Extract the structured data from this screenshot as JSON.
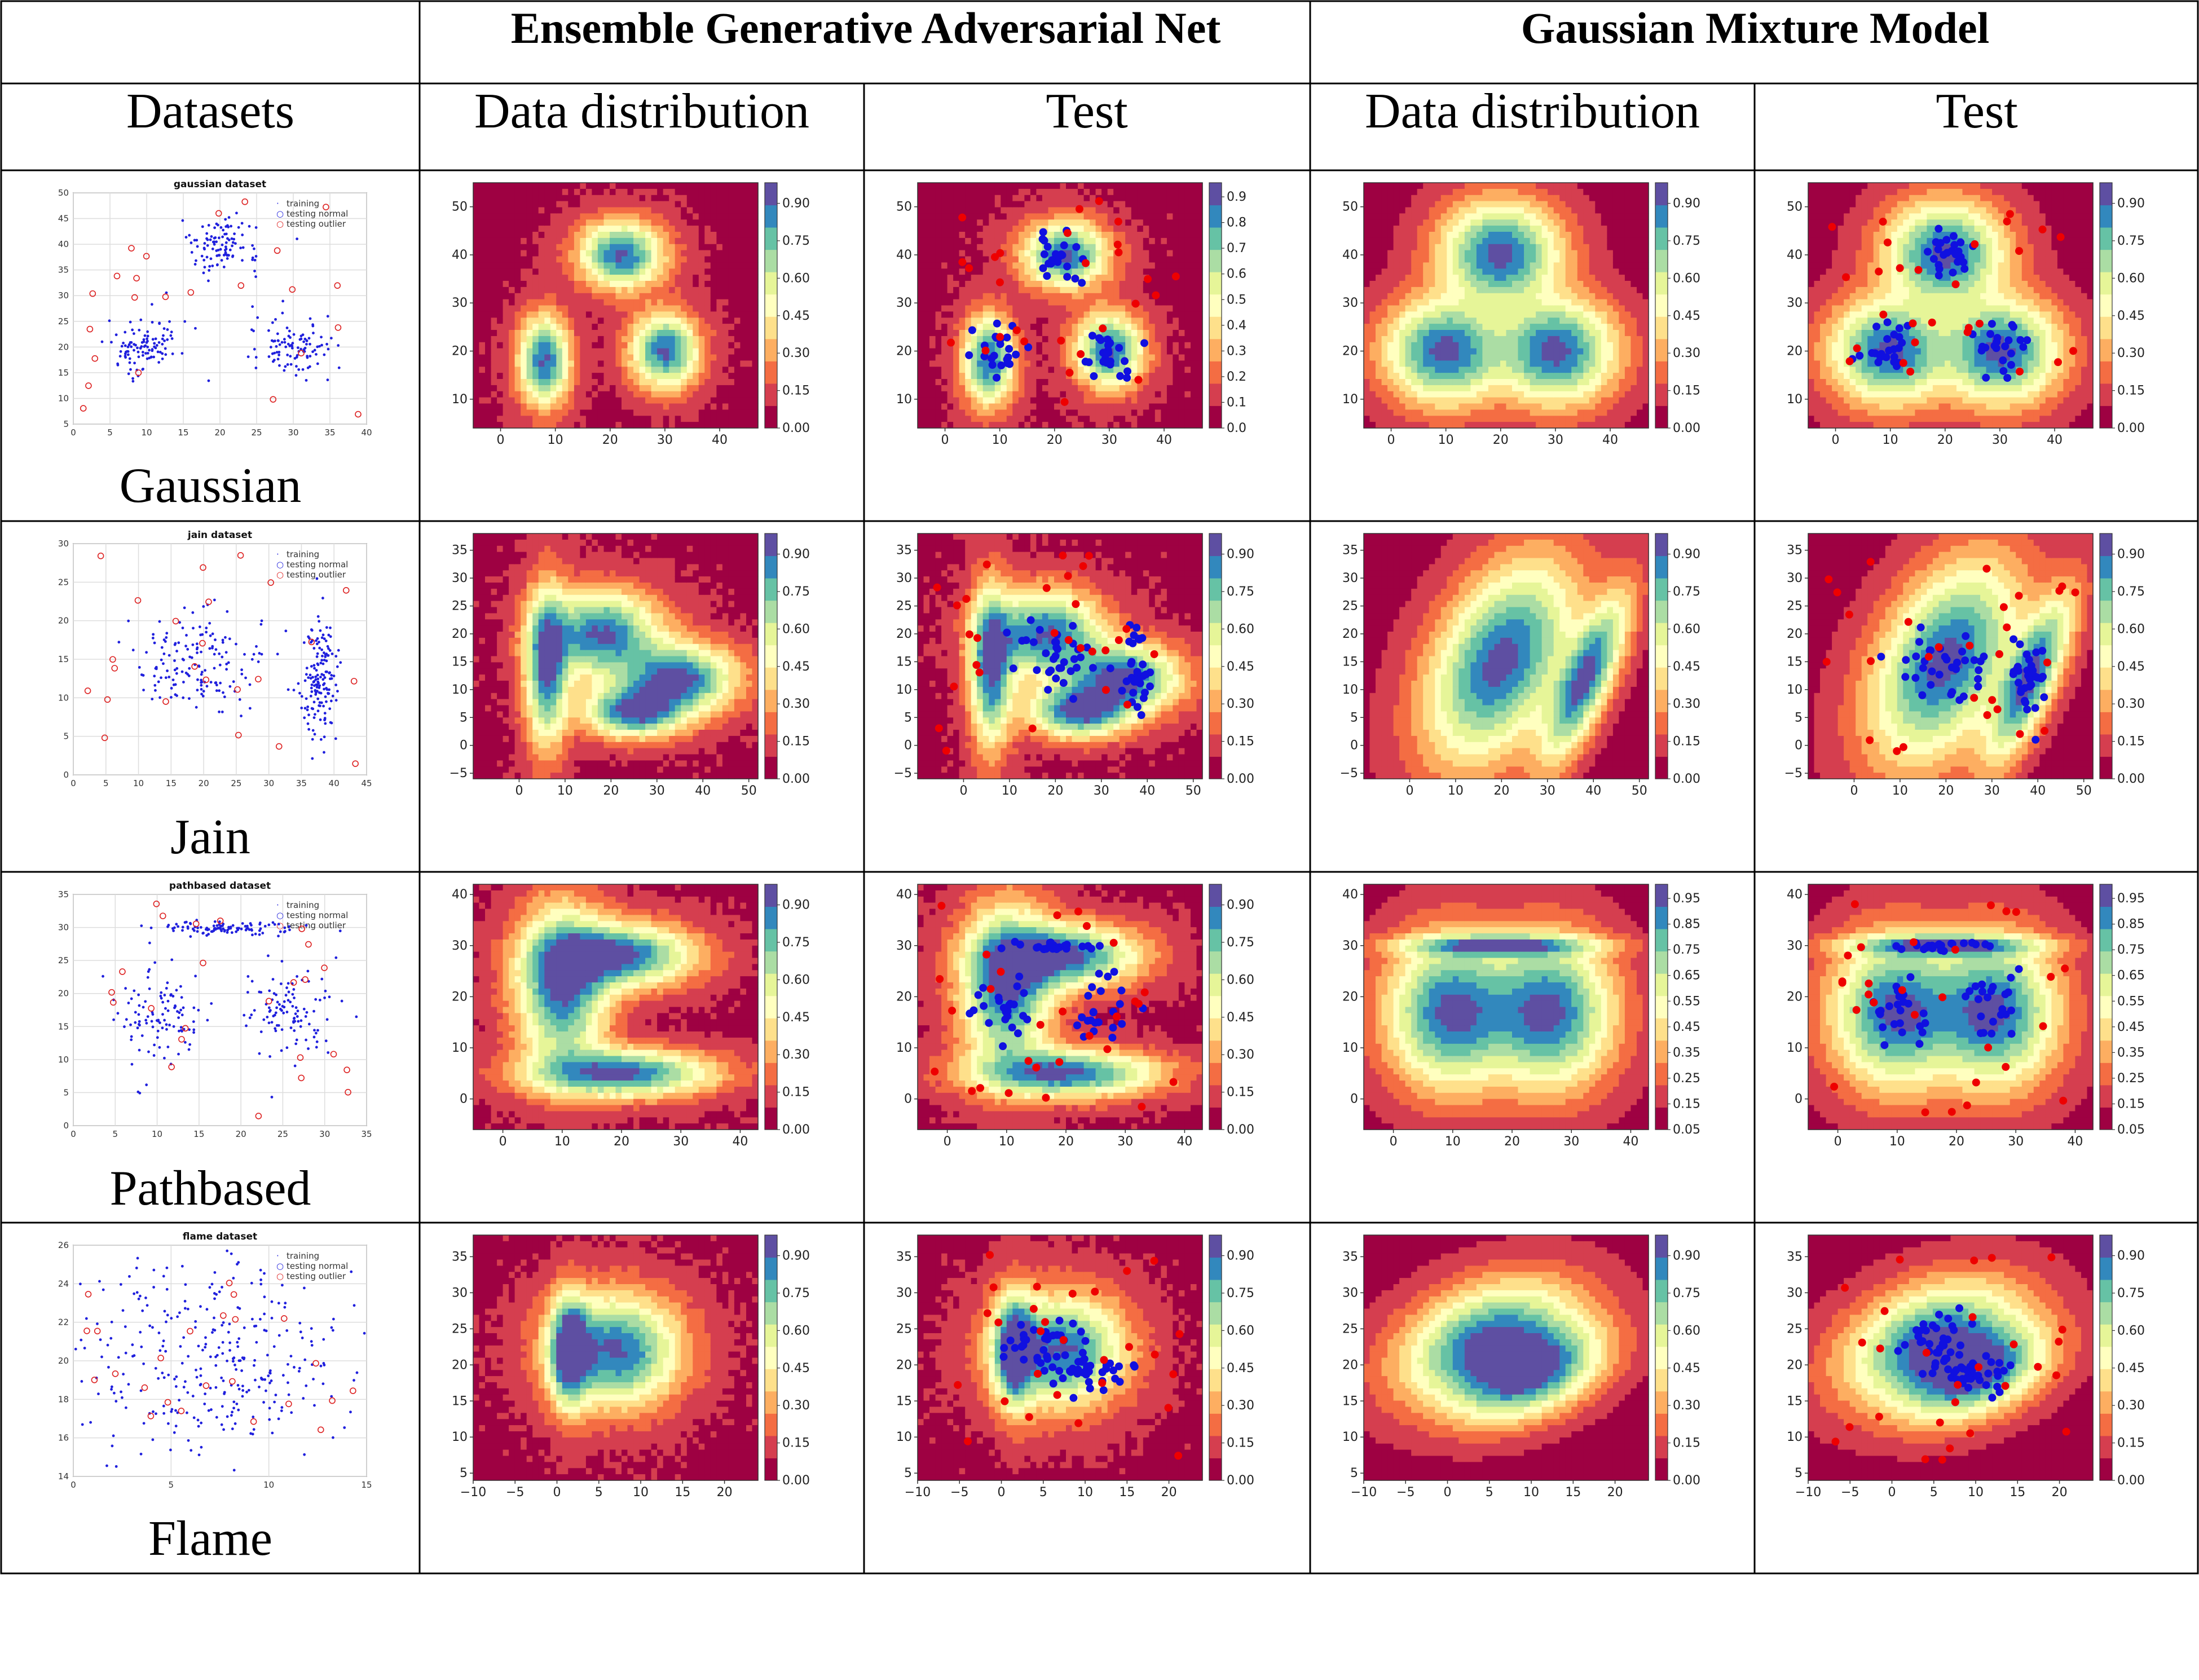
{
  "header": {
    "group_egan": "Ensemble Generative Adversarial  Net",
    "group_gmm": "Gaussian Mixture Model",
    "col_datasets": "Datasets",
    "col_egan_distribution": "Data distribution",
    "col_egan_test": "Test",
    "col_gmm_distribution": "Data distribution",
    "col_gmm_test": "Test"
  },
  "scatter_legend": [
    "training",
    "testing normal",
    "testing outlier"
  ],
  "colorbar_palette": [
    "#9e0142",
    "#d53e4f",
    "#f46d43",
    "#fdae61",
    "#fee08b",
    "#ffffbf",
    "#e6f598",
    "#abdda4",
    "#66c2a5",
    "#3288bd",
    "#5e4fa2"
  ],
  "rows": [
    {
      "name": "Gaussian",
      "scatter": {
        "title": "gaussian dataset",
        "xticks": [
          "0",
          "5",
          "10",
          "15",
          "20",
          "25",
          "30",
          "35",
          "40"
        ],
        "yticks": [
          "5",
          "10",
          "15",
          "20",
          "25",
          "30",
          "35",
          "40",
          "45",
          "50"
        ],
        "xrange": [
          0,
          40
        ],
        "yrange": [
          5,
          50
        ]
      },
      "contour": {
        "xrange": [
          -5,
          47
        ],
        "yrange": [
          4,
          55
        ],
        "xticks": [
          "0",
          "10",
          "20",
          "30",
          "40"
        ],
        "yticks": [
          "10",
          "20",
          "30",
          "40",
          "50"
        ]
      },
      "colorbars": {
        "egan_dist": [
          "0.00",
          "0.15",
          "0.30",
          "0.45",
          "0.60",
          "0.75",
          "0.90"
        ],
        "egan_test": [
          "0.0",
          "0.1",
          "0.2",
          "0.3",
          "0.4",
          "0.5",
          "0.6",
          "0.7",
          "0.8",
          "0.9"
        ],
        "gmm_dist": [
          "0.00",
          "0.15",
          "0.30",
          "0.45",
          "0.60",
          "0.75",
          "0.90"
        ],
        "gmm_test": [
          "0.00",
          "0.15",
          "0.30",
          "0.45",
          "0.60",
          "0.75",
          "0.90"
        ]
      }
    },
    {
      "name": "Jain",
      "scatter": {
        "title": "jain dataset",
        "xticks": [
          "0",
          "5",
          "10",
          "15",
          "20",
          "25",
          "30",
          "35",
          "40",
          "45"
        ],
        "yticks": [
          "0",
          "5",
          "10",
          "15",
          "20",
          "25",
          "30"
        ],
        "xrange": [
          0,
          45
        ],
        "yrange": [
          0,
          30
        ]
      },
      "contour": {
        "xrange": [
          -10,
          52
        ],
        "yrange": [
          -6,
          38
        ],
        "xticks": [
          "0",
          "10",
          "20",
          "30",
          "40",
          "50"
        ],
        "yticks": [
          "−5",
          "0",
          "5",
          "10",
          "15",
          "20",
          "25",
          "30",
          "35"
        ]
      },
      "colorbars": {
        "egan_dist": [
          "0.00",
          "0.15",
          "0.30",
          "0.45",
          "0.60",
          "0.75",
          "0.90"
        ],
        "egan_test": [
          "0.00",
          "0.15",
          "0.30",
          "0.45",
          "0.60",
          "0.75",
          "0.90"
        ],
        "gmm_dist": [
          "0.00",
          "0.15",
          "0.30",
          "0.45",
          "0.60",
          "0.75",
          "0.90"
        ],
        "gmm_test": [
          "0.00",
          "0.15",
          "0.30",
          "0.45",
          "0.60",
          "0.75",
          "0.90"
        ]
      }
    },
    {
      "name": "Pathbased",
      "scatter": {
        "title": "pathbased dataset",
        "xticks": [
          "0",
          "5",
          "10",
          "15",
          "20",
          "25",
          "30",
          "35"
        ],
        "yticks": [
          "0",
          "5",
          "10",
          "15",
          "20",
          "25",
          "30",
          "35"
        ],
        "xrange": [
          0,
          35
        ],
        "yrange": [
          0,
          35
        ]
      },
      "contour": {
        "xrange": [
          -5,
          43
        ],
        "yrange": [
          -6,
          42
        ],
        "xticks": [
          "0",
          "10",
          "20",
          "30",
          "40"
        ],
        "yticks": [
          "0",
          "10",
          "20",
          "30",
          "40"
        ]
      },
      "colorbars": {
        "egan_dist": [
          "0.00",
          "0.15",
          "0.30",
          "0.45",
          "0.60",
          "0.75",
          "0.90"
        ],
        "egan_test": [
          "0.00",
          "0.15",
          "0.30",
          "0.45",
          "0.60",
          "0.75",
          "0.90"
        ],
        "gmm_dist": [
          "0.05",
          "0.15",
          "0.25",
          "0.35",
          "0.45",
          "0.55",
          "0.65",
          "0.75",
          "0.85",
          "0.95"
        ],
        "gmm_test": [
          "0.05",
          "0.15",
          "0.25",
          "0.35",
          "0.45",
          "0.55",
          "0.65",
          "0.75",
          "0.85",
          "0.95"
        ]
      }
    },
    {
      "name": "Flame",
      "scatter": {
        "title": "flame dataset",
        "xticks": [
          "0",
          "5",
          "10",
          "15"
        ],
        "yticks": [
          "14",
          "16",
          "18",
          "20",
          "22",
          "24",
          "26"
        ],
        "xrange": [
          0,
          15
        ],
        "yrange": [
          14,
          26
        ]
      },
      "contour": {
        "xrange": [
          -10,
          24
        ],
        "yrange": [
          4,
          38
        ],
        "xticks": [
          "−10",
          "−5",
          "0",
          "5",
          "10",
          "15",
          "20"
        ],
        "yticks": [
          "5",
          "10",
          "15",
          "20",
          "25",
          "30",
          "35"
        ]
      },
      "colorbars": {
        "egan_dist": [
          "0.00",
          "0.15",
          "0.30",
          "0.45",
          "0.60",
          "0.75",
          "0.90"
        ],
        "egan_test": [
          "0.00",
          "0.15",
          "0.30",
          "0.45",
          "0.60",
          "0.75",
          "0.90"
        ],
        "gmm_dist": [
          "0.00",
          "0.15",
          "0.30",
          "0.45",
          "0.60",
          "0.75",
          "0.90"
        ],
        "gmm_test": [
          "0.00",
          "0.15",
          "0.30",
          "0.45",
          "0.60",
          "0.75",
          "0.90"
        ]
      }
    }
  ]
}
